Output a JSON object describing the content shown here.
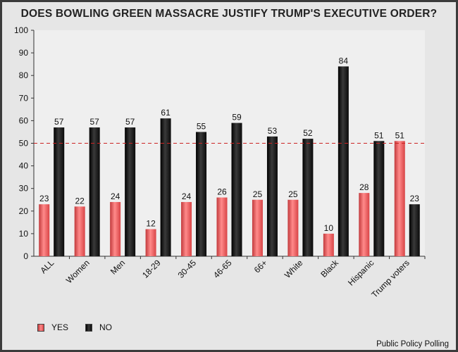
{
  "chart_data": {
    "type": "bar",
    "title": "DOES BOWLING GREEN MASSACRE JUSTIFY TRUMP'S EXECUTIVE ORDER?",
    "categories": [
      "ALL",
      "Women",
      "Men",
      "18-29",
      "30-45",
      "46-65",
      "66+",
      "White",
      "Black",
      "Hispanic",
      "Trump voters"
    ],
    "series": [
      {
        "name": "YES",
        "color": "#e8585a",
        "values": [
          23,
          22,
          24,
          12,
          24,
          26,
          25,
          25,
          10,
          28,
          51
        ]
      },
      {
        "name": "NO",
        "color": "#151515",
        "values": [
          57,
          57,
          57,
          61,
          55,
          59,
          53,
          52,
          84,
          51,
          23
        ]
      }
    ],
    "ylim": [
      0,
      100
    ],
    "yticks": [
      0,
      10,
      20,
      30,
      40,
      50,
      60,
      70,
      80,
      90,
      100
    ],
    "reference_line": {
      "value": 50,
      "color": "#cc2222"
    },
    "xlabel": "",
    "ylabel": "",
    "legend_position": "bottom-left",
    "source": "Public Policy Polling"
  }
}
